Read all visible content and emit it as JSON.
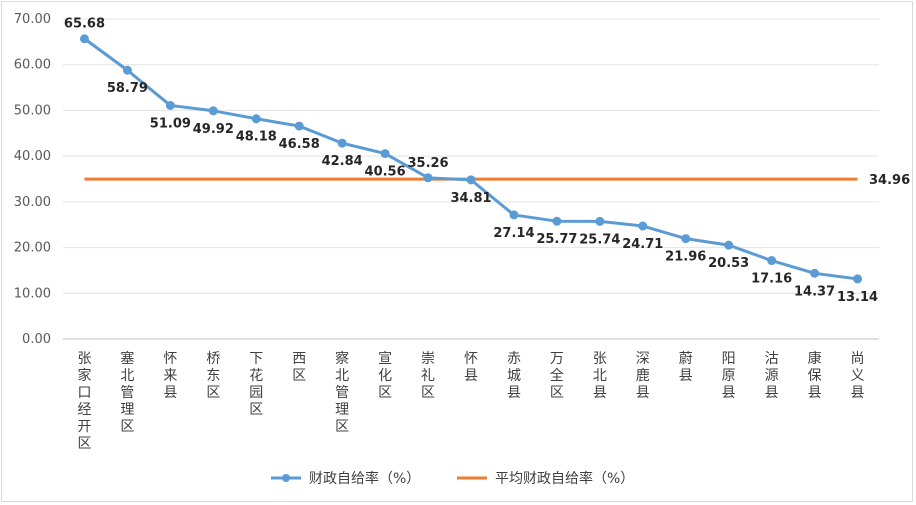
{
  "chart_data": {
    "type": "line",
    "categories": [
      "张家口经开区",
      "塞北管理区",
      "怀来县",
      "桥东区",
      "下花园区",
      "西区",
      "察北管理区",
      "宣化区",
      "崇礼区",
      "怀县",
      "赤城县",
      "万全区",
      "张北县",
      "深鹿县",
      "蔚县",
      "阳原县",
      "沽源县",
      "康保县",
      "尚义县"
    ],
    "series": [
      {
        "name": "财政自给率（%）",
        "color": "#5B9BD5",
        "values": [
          65.68,
          58.79,
          51.09,
          49.92,
          48.18,
          46.58,
          42.84,
          40.56,
          35.26,
          34.81,
          27.14,
          25.77,
          25.74,
          24.71,
          21.96,
          20.53,
          17.16,
          14.37,
          13.14
        ],
        "labels": [
          "65.68",
          "58.79",
          "51.09",
          "49.92",
          "48.18",
          "46.58",
          "42.84",
          "40.56",
          "35.26",
          "34.81",
          "27.14",
          "25.77",
          "25.74",
          "24.71",
          "21.96",
          "20.53",
          "17.16",
          "14.37",
          "13.14"
        ]
      },
      {
        "name": "平均财政自给率（%）",
        "color": "#ED7D31",
        "values": [
          34.96,
          34.96,
          34.96,
          34.96,
          34.96,
          34.96,
          34.96,
          34.96,
          34.96,
          34.96,
          34.96,
          34.96,
          34.96,
          34.96,
          34.96,
          34.96,
          34.96,
          34.96,
          34.96
        ],
        "end_label": "34.96"
      }
    ],
    "y_ticks": [
      "0.00",
      "10.00",
      "20.00",
      "30.00",
      "40.00",
      "50.00",
      "60.00",
      "70.00"
    ],
    "ylim": [
      0,
      70
    ],
    "grid": true,
    "legend_position": "bottom"
  }
}
